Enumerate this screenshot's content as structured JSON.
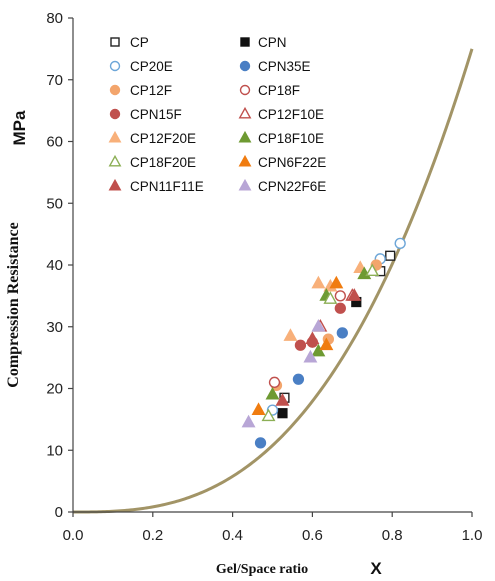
{
  "chart_data": {
    "type": "scatter",
    "title": "",
    "xlabel": "Gel/Space ratio",
    "xlabel_symbol": "X",
    "ylabel": "Compression Resistance",
    "ylabel_unit": "MPa",
    "xlim": [
      0,
      1
    ],
    "ylim": [
      0,
      80
    ],
    "xticks": [
      "0.0",
      "0.2",
      "0.4",
      "0.6",
      "0.8",
      "1.0"
    ],
    "yticks": [
      "0",
      "10",
      "20",
      "30",
      "40",
      "50",
      "60",
      "70",
      "80"
    ],
    "grid": false,
    "legend_position": "top-left",
    "curve": {
      "description": "power-law fit through the data",
      "a": 75,
      "exponent": 2.8,
      "color": "#a29466"
    },
    "series": [
      {
        "name": "CP",
        "marker": "square",
        "filled": false,
        "color": "#222222",
        "points": [
          [
            0.53,
            18.5
          ],
          [
            0.77,
            39
          ],
          [
            0.795,
            41.5
          ]
        ]
      },
      {
        "name": "CPN",
        "marker": "square",
        "filled": true,
        "color": "#111111",
        "points": [
          [
            0.525,
            16
          ],
          [
            0.71,
            34
          ]
        ]
      },
      {
        "name": "CP20E",
        "marker": "circle",
        "filled": false,
        "color": "#6da6d8",
        "points": [
          [
            0.5,
            16.5
          ],
          [
            0.77,
            41
          ],
          [
            0.82,
            43.5
          ]
        ]
      },
      {
        "name": "CPN35E",
        "marker": "circle",
        "filled": true,
        "color": "#4a7fc4",
        "points": [
          [
            0.47,
            11.2
          ],
          [
            0.565,
            21.5
          ],
          [
            0.675,
            29
          ]
        ]
      },
      {
        "name": "CP12F",
        "marker": "circle",
        "filled": true,
        "color": "#f3a56c",
        "points": [
          [
            0.51,
            20.5
          ],
          [
            0.64,
            28
          ],
          [
            0.76,
            40
          ]
        ]
      },
      {
        "name": "CP18F",
        "marker": "circle",
        "filled": false,
        "color": "#c0504d",
        "points": [
          [
            0.505,
            21
          ],
          [
            0.67,
            35
          ]
        ]
      },
      {
        "name": "CPN15F",
        "marker": "circle",
        "filled": true,
        "color": "#c0504d",
        "points": [
          [
            0.57,
            27
          ],
          [
            0.6,
            27.5
          ],
          [
            0.67,
            33
          ]
        ]
      },
      {
        "name": "CP12F10E",
        "marker": "triangle",
        "filled": false,
        "color": "#c0504d",
        "points": [
          [
            0.62,
            30
          ],
          [
            0.7,
            35
          ]
        ]
      },
      {
        "name": "CP12F20E",
        "marker": "triangle",
        "filled": true,
        "color": "#f8b07a",
        "points": [
          [
            0.545,
            28.5
          ],
          [
            0.615,
            37
          ],
          [
            0.645,
            36.5
          ],
          [
            0.72,
            39.5
          ]
        ]
      },
      {
        "name": "CP18F10E",
        "marker": "triangle",
        "filled": true,
        "color": "#6e9a32",
        "points": [
          [
            0.5,
            19
          ],
          [
            0.615,
            26
          ],
          [
            0.635,
            35
          ],
          [
            0.73,
            38.5
          ]
        ]
      },
      {
        "name": "CP18F20E",
        "marker": "triangle",
        "filled": false,
        "color": "#8caf55",
        "points": [
          [
            0.49,
            15.5
          ],
          [
            0.645,
            34.5
          ],
          [
            0.75,
            39
          ]
        ]
      },
      {
        "name": "CPN6F22E",
        "marker": "triangle",
        "filled": true,
        "color": "#f07c10",
        "points": [
          [
            0.465,
            16.5
          ],
          [
            0.635,
            27
          ],
          [
            0.66,
            37
          ]
        ]
      },
      {
        "name": "CPN11F11E",
        "marker": "triangle",
        "filled": true,
        "color": "#c0504d",
        "points": [
          [
            0.525,
            18
          ],
          [
            0.6,
            28
          ],
          [
            0.705,
            35
          ]
        ]
      },
      {
        "name": "CPN22F6E",
        "marker": "triangle",
        "filled": true,
        "color": "#b8a6d6",
        "points": [
          [
            0.44,
            14.5
          ],
          [
            0.595,
            25
          ],
          [
            0.615,
            30
          ]
        ]
      }
    ]
  }
}
